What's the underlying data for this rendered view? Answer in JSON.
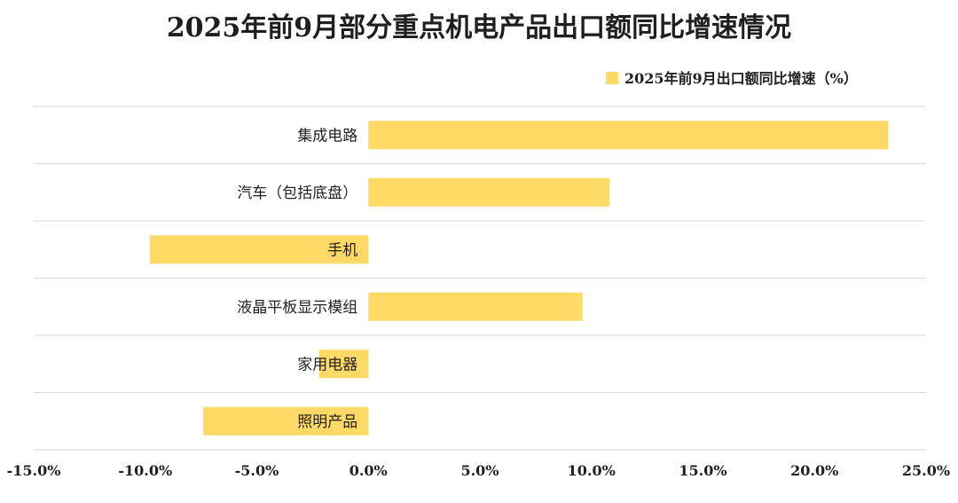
{
  "chart_data": {
    "type": "bar",
    "orientation": "horizontal",
    "title": "2025年前9月部分重点机电产品出口额同比增速情况",
    "legend": {
      "position": "top-right",
      "entries": [
        "2025年前9月出口额同比增速（%）"
      ]
    },
    "categories": [
      "集成电路",
      "汽车（包括底盘）",
      "手机",
      "液晶平板显示模组",
      "家用电器",
      "照明产品"
    ],
    "series": [
      {
        "name": "2025年前9月出口额同比增速（%）",
        "values": [
          23.3,
          10.8,
          -9.8,
          9.6,
          -2.2,
          -7.4
        ]
      }
    ],
    "xlim": [
      -15,
      25
    ],
    "xticks": [
      "-15.0%",
      "-10.0%",
      "-5.0%",
      "0.0%",
      "5.0%",
      "10.0%",
      "15.0%",
      "20.0%",
      "25.0%"
    ],
    "grid": {
      "horizontal_separators": true,
      "vertical": false
    },
    "colors": {
      "bar": "#FFD966",
      "grid": "#D9D9D9",
      "text": "#1F1F1F"
    }
  }
}
